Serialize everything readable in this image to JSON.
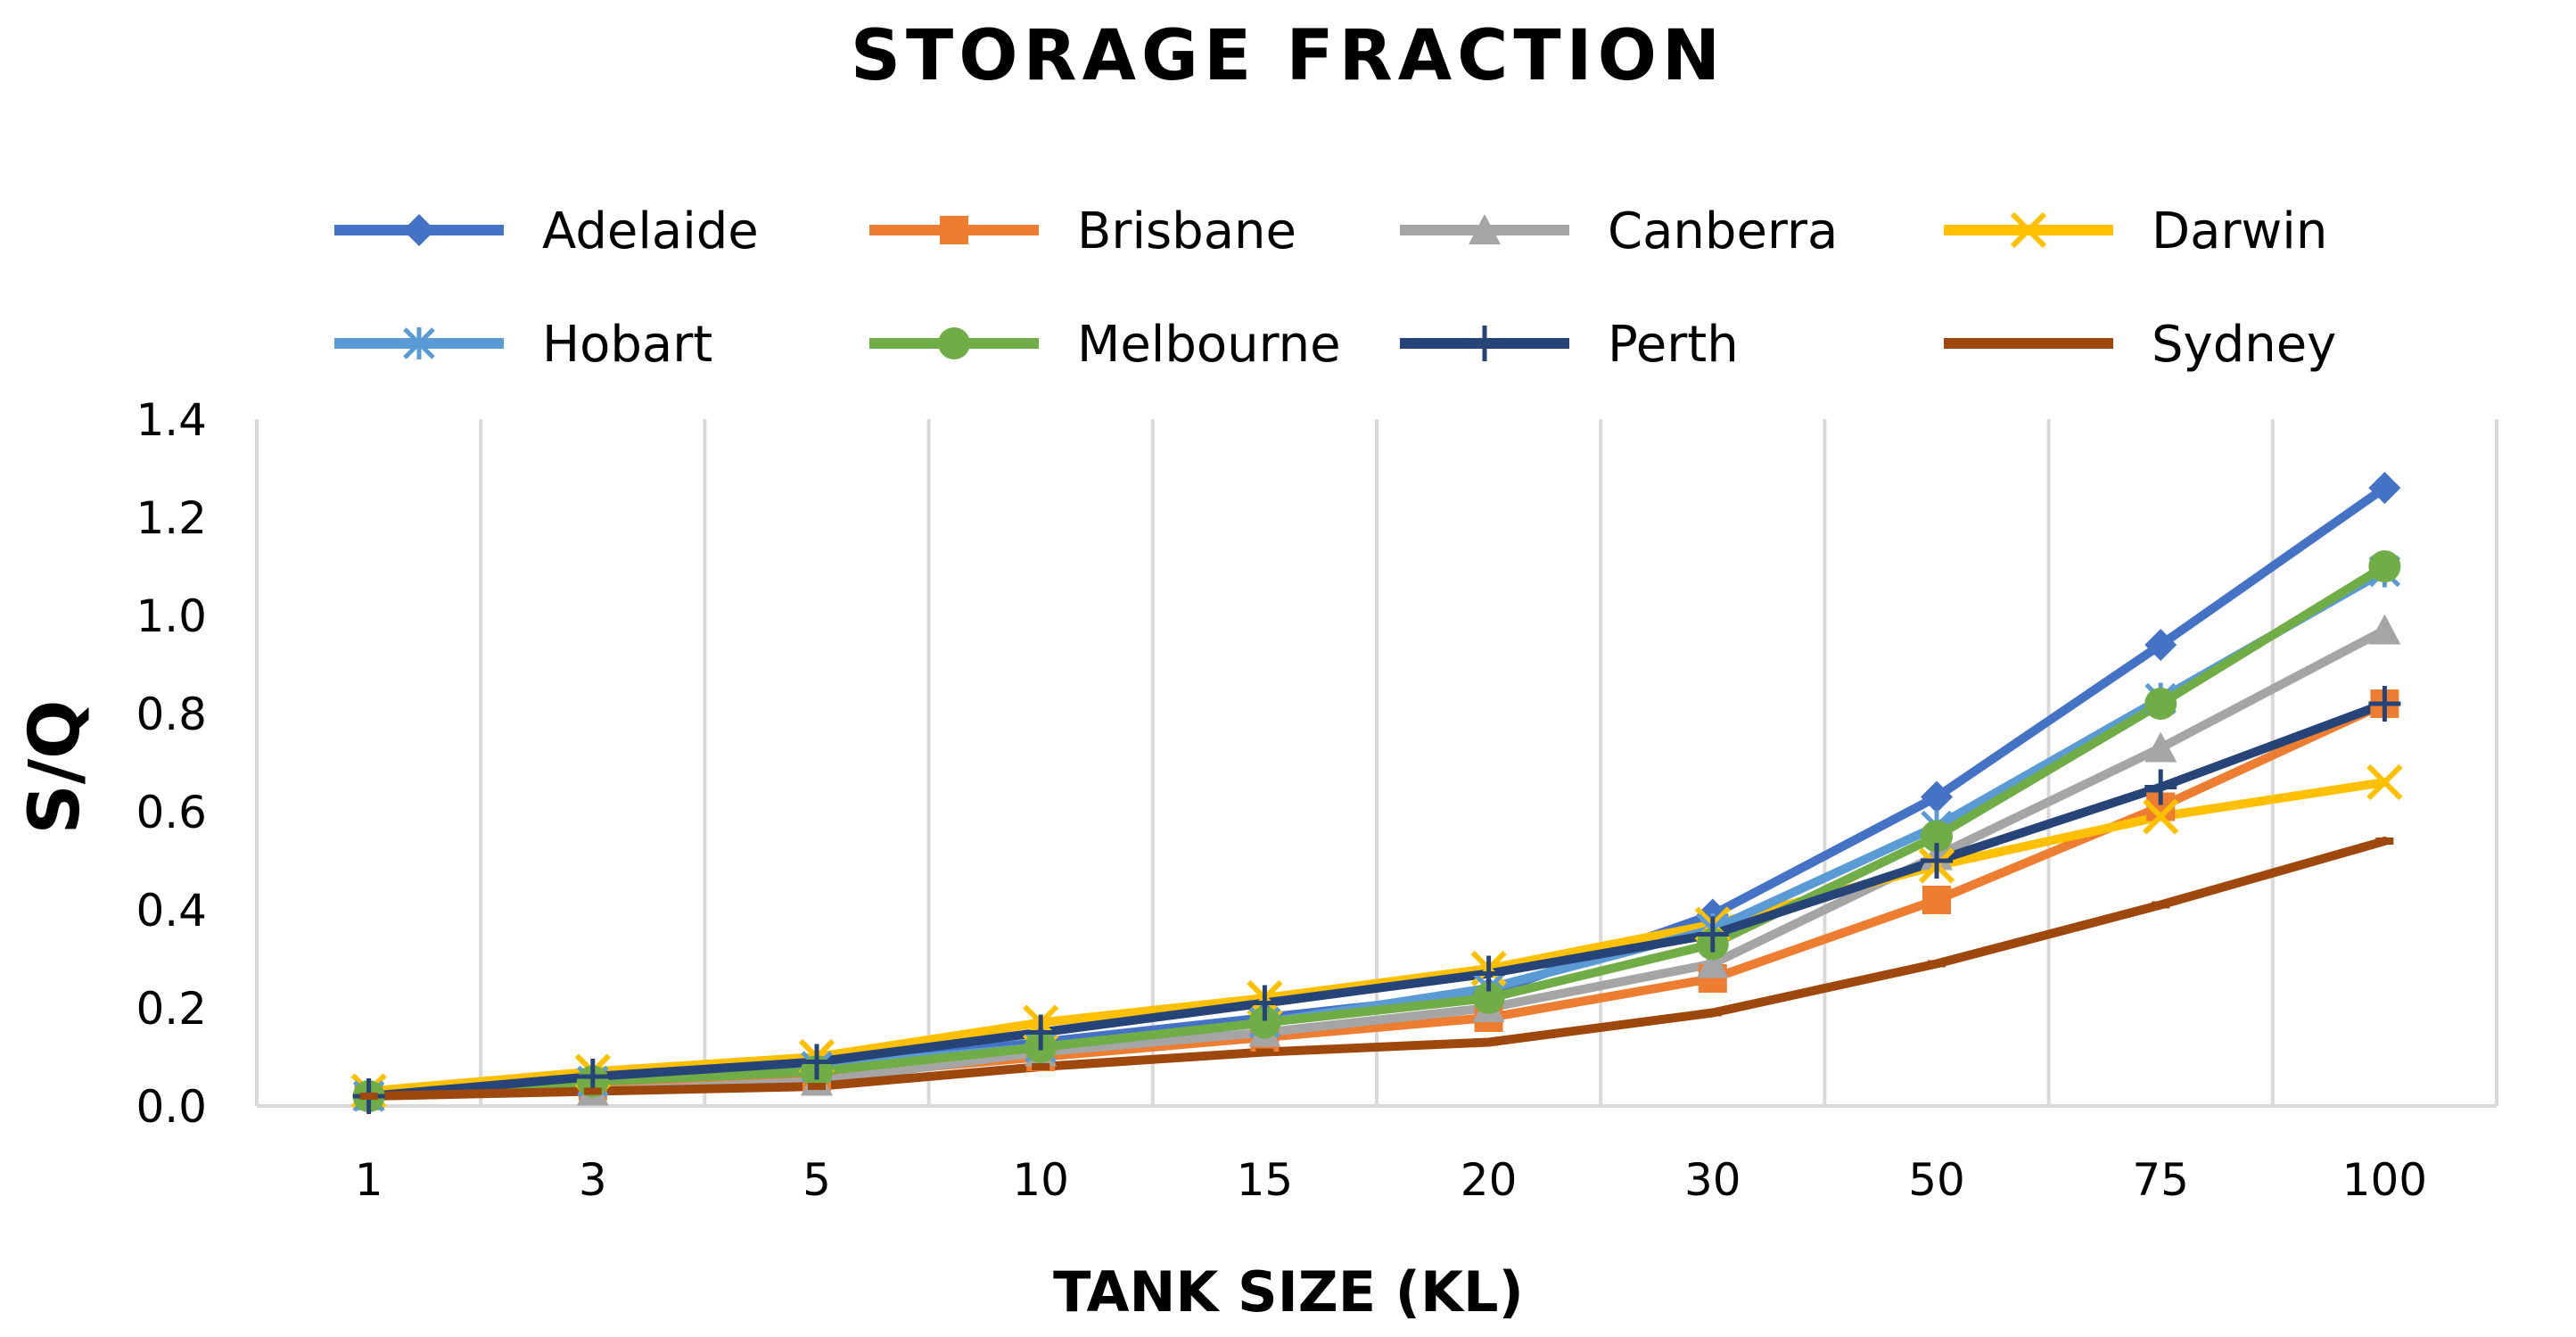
{
  "chart_data": {
    "type": "line",
    "title": "STORAGE FRACTION",
    "xlabel": "TANK SIZE (KL)",
    "ylabel": "S/Q",
    "categories": [
      "1",
      "3",
      "5",
      "10",
      "15",
      "20",
      "30",
      "50",
      "75",
      "100"
    ],
    "ylim": [
      0,
      1.4
    ],
    "yticks": [
      "0.0",
      "0.2",
      "0.4",
      "0.6",
      "0.8",
      "1.0",
      "1.2",
      "1.4"
    ],
    "grid": "vertical",
    "legend_position": "top",
    "series": [
      {
        "name": "Adelaide",
        "color": "#4472C4",
        "marker": "diamond",
        "values": [
          0.02,
          0.05,
          0.08,
          0.13,
          0.18,
          0.23,
          0.39,
          0.63,
          0.94,
          1.26
        ]
      },
      {
        "name": "Brisbane",
        "color": "#ED7D31",
        "marker": "square",
        "values": [
          0.02,
          0.04,
          0.06,
          0.1,
          0.14,
          0.18,
          0.26,
          0.42,
          0.61,
          0.82
        ]
      },
      {
        "name": "Canberra",
        "color": "#A5A5A5",
        "marker": "triangle",
        "values": [
          0.02,
          0.03,
          0.05,
          0.11,
          0.15,
          0.2,
          0.29,
          0.51,
          0.73,
          0.97
        ]
      },
      {
        "name": "Darwin",
        "color": "#FFC000",
        "marker": "x",
        "values": [
          0.03,
          0.07,
          0.1,
          0.17,
          0.22,
          0.28,
          0.37,
          0.49,
          0.59,
          0.66
        ]
      },
      {
        "name": "Hobart",
        "color": "#5B9BD5",
        "marker": "asterisk",
        "values": [
          0.02,
          0.05,
          0.08,
          0.12,
          0.17,
          0.24,
          0.36,
          0.57,
          0.83,
          1.09
        ]
      },
      {
        "name": "Melbourne",
        "color": "#70AD47",
        "marker": "circle",
        "values": [
          0.02,
          0.05,
          0.07,
          0.12,
          0.17,
          0.22,
          0.33,
          0.55,
          0.82,
          1.1
        ]
      },
      {
        "name": "Perth",
        "color": "#264478",
        "marker": "plus",
        "values": [
          0.02,
          0.06,
          0.09,
          0.15,
          0.21,
          0.27,
          0.35,
          0.5,
          0.65,
          0.82
        ]
      },
      {
        "name": "Sydney",
        "color": "#9E480E",
        "marker": "dash",
        "values": [
          0.02,
          0.03,
          0.04,
          0.08,
          0.11,
          0.13,
          0.19,
          0.29,
          0.41,
          0.54
        ]
      }
    ]
  }
}
